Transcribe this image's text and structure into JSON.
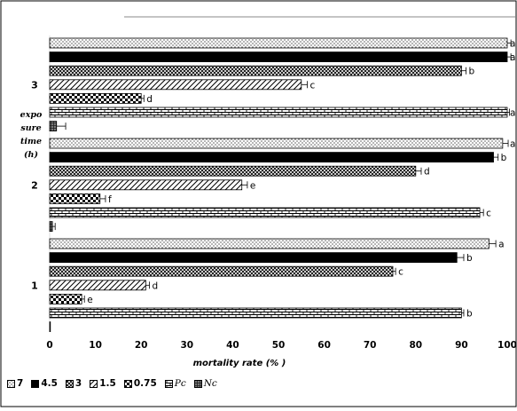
{
  "chart_data": {
    "type": "bar",
    "orientation": "horizontal",
    "xlabel": "mortality rate (% )",
    "ylabel": [
      "expo",
      "sure",
      "time",
      "(h)"
    ],
    "xlim": [
      0,
      100
    ],
    "xticks": [
      0,
      10,
      20,
      30,
      40,
      50,
      60,
      70,
      80,
      90,
      100
    ],
    "categories": [
      "1",
      "2",
      "3"
    ],
    "series": [
      {
        "name": "7",
        "values": [
          96,
          99,
          100
        ],
        "errors": [
          1.5,
          1.2,
          0.8
        ],
        "letters": [
          "a",
          "a",
          "a"
        ]
      },
      {
        "name": "4.5",
        "values": [
          89,
          97,
          100
        ],
        "errors": [
          1.5,
          1.0,
          0.8
        ],
        "letters": [
          "b",
          "b",
          "a"
        ]
      },
      {
        "name": "3",
        "values": [
          75,
          80,
          90
        ],
        "errors": [
          0.6,
          1.2,
          1.0
        ],
        "letters": [
          "c",
          "d",
          "b"
        ]
      },
      {
        "name": "1.5",
        "values": [
          21,
          42,
          55
        ],
        "errors": [
          0.8,
          1.2,
          1.3
        ],
        "letters": [
          "d",
          "e",
          "c"
        ]
      },
      {
        "name": "0.75",
        "values": [
          7,
          11,
          20
        ],
        "errors": [
          0.6,
          1.2,
          0.6
        ],
        "letters": [
          "e",
          "f",
          "d"
        ]
      },
      {
        "name": "Pc",
        "values": [
          90,
          94,
          100
        ],
        "errors": [
          0.5,
          0.8,
          0.5
        ],
        "letters": [
          "b",
          "c",
          "a"
        ]
      },
      {
        "name": "Nc",
        "values": [
          0,
          0.6,
          1.5
        ],
        "errors": [
          0,
          0.6,
          2.0
        ],
        "letters": [
          "",
          "",
          ""
        ]
      }
    ],
    "grid": false,
    "legend_position": "bottom-left"
  }
}
